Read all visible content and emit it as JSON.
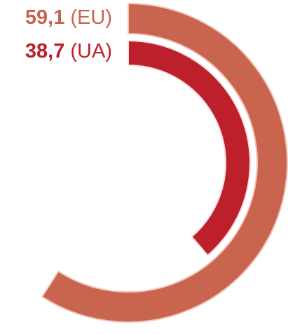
{
  "chart_data": {
    "type": "radial_bar",
    "categories": [
      "(EU)",
      "(UA)"
    ],
    "values": [
      59.1,
      38.7
    ],
    "value_labels": [
      "59,1",
      "38,7"
    ],
    "colors": [
      "#c9654f",
      "#bd1f2b"
    ],
    "ylim": [
      0,
      100
    ]
  }
}
